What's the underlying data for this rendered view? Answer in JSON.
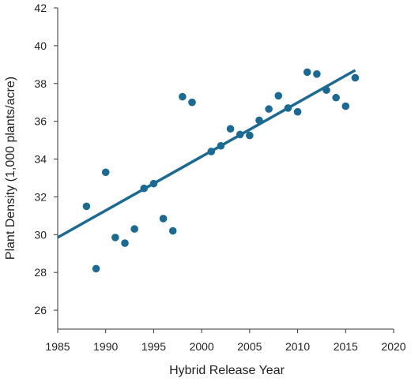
{
  "chart_data": {
    "type": "scatter",
    "title": "",
    "xlabel": "Hybrid Release Year",
    "ylabel": "Plant Density (1,000 plants/acre)",
    "xlim": [
      1985,
      2020
    ],
    "ylim": [
      25,
      42
    ],
    "x_ticks": [
      1985,
      1990,
      1995,
      2000,
      2005,
      2010,
      2015,
      2020
    ],
    "y_ticks": [
      26,
      28,
      30,
      32,
      34,
      36,
      38,
      40,
      42
    ],
    "grid": false,
    "legend": "none",
    "color": "#1a6a93",
    "points": [
      {
        "x": 1988,
        "y": 31.5
      },
      {
        "x": 1989,
        "y": 28.2
      },
      {
        "x": 1990,
        "y": 33.3
      },
      {
        "x": 1991,
        "y": 29.85
      },
      {
        "x": 1992,
        "y": 29.55
      },
      {
        "x": 1993,
        "y": 30.3
      },
      {
        "x": 1994,
        "y": 32.45
      },
      {
        "x": 1995,
        "y": 32.7
      },
      {
        "x": 1996,
        "y": 30.85
      },
      {
        "x": 1997,
        "y": 30.2
      },
      {
        "x": 1998,
        "y": 37.3
      },
      {
        "x": 1999,
        "y": 37.0
      },
      {
        "x": 2001,
        "y": 34.4
      },
      {
        "x": 2002,
        "y": 34.7
      },
      {
        "x": 2003,
        "y": 35.6
      },
      {
        "x": 2004,
        "y": 35.3
      },
      {
        "x": 2005,
        "y": 35.25
      },
      {
        "x": 2006,
        "y": 36.05
      },
      {
        "x": 2007,
        "y": 36.65
      },
      {
        "x": 2008,
        "y": 37.35
      },
      {
        "x": 2009,
        "y": 36.7
      },
      {
        "x": 2010,
        "y": 36.5
      },
      {
        "x": 2011,
        "y": 38.6
      },
      {
        "x": 2012,
        "y": 38.5
      },
      {
        "x": 2013,
        "y": 37.65
      },
      {
        "x": 2014,
        "y": 37.25
      },
      {
        "x": 2015,
        "y": 36.8
      },
      {
        "x": 2016,
        "y": 38.3
      }
    ],
    "trendline": {
      "x": [
        1985,
        2016
      ],
      "y": [
        29.85,
        38.7
      ]
    }
  }
}
